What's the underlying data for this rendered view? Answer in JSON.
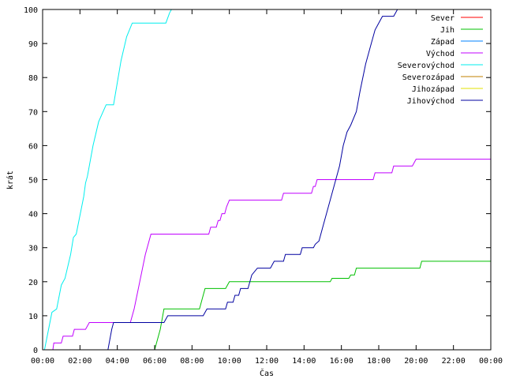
{
  "chart_data": {
    "type": "line",
    "title": "",
    "xlabel": "Čas",
    "ylabel": "krát",
    "xlim": [
      0,
      24
    ],
    "ylim": [
      0,
      100
    ],
    "x_ticks": [
      {
        "v": 0,
        "label": "00:00"
      },
      {
        "v": 2,
        "label": "02:00"
      },
      {
        "v": 4,
        "label": "04:00"
      },
      {
        "v": 6,
        "label": "06:00"
      },
      {
        "v": 8,
        "label": "08:00"
      },
      {
        "v": 10,
        "label": "10:00"
      },
      {
        "v": 12,
        "label": "12:00"
      },
      {
        "v": 14,
        "label": "14:00"
      },
      {
        "v": 16,
        "label": "16:00"
      },
      {
        "v": 18,
        "label": "18:00"
      },
      {
        "v": 20,
        "label": "20:00"
      },
      {
        "v": 22,
        "label": "22:00"
      },
      {
        "v": 24,
        "label": "00:00"
      }
    ],
    "y_ticks": [
      {
        "v": 0,
        "label": "0"
      },
      {
        "v": 10,
        "label": "10"
      },
      {
        "v": 20,
        "label": "20"
      },
      {
        "v": 30,
        "label": "30"
      },
      {
        "v": 40,
        "label": "40"
      },
      {
        "v": 50,
        "label": "50"
      },
      {
        "v": 60,
        "label": "60"
      },
      {
        "v": 70,
        "label": "70"
      },
      {
        "v": 80,
        "label": "80"
      },
      {
        "v": 90,
        "label": "90"
      },
      {
        "v": 100,
        "label": "100"
      }
    ],
    "grid": false,
    "legend_position": "top-right",
    "series": [
      {
        "name": "Sever",
        "color": "#ff0000",
        "points": []
      },
      {
        "name": "Jih",
        "color": "#00c000",
        "points": [
          [
            6.0,
            0
          ],
          [
            6.3,
            6
          ],
          [
            6.5,
            12
          ],
          [
            8.4,
            12
          ],
          [
            8.6,
            16
          ],
          [
            8.7,
            18
          ],
          [
            9.8,
            18
          ],
          [
            10.0,
            20
          ],
          [
            15.4,
            20
          ],
          [
            15.5,
            21
          ],
          [
            16.4,
            21
          ],
          [
            16.5,
            22
          ],
          [
            16.7,
            22
          ],
          [
            16.8,
            24
          ],
          [
            20.2,
            24
          ],
          [
            20.3,
            26
          ],
          [
            24.0,
            26
          ]
        ]
      },
      {
        "name": "Západ",
        "color": "#0080ff",
        "points": []
      },
      {
        "name": "Východ",
        "color": "#c000ff",
        "points": [
          [
            0.0,
            0
          ],
          [
            0.55,
            0
          ],
          [
            0.6,
            2
          ],
          [
            1.0,
            2
          ],
          [
            1.1,
            4
          ],
          [
            1.6,
            4
          ],
          [
            1.7,
            6
          ],
          [
            2.3,
            6
          ],
          [
            2.5,
            8
          ],
          [
            4.7,
            8
          ],
          [
            4.9,
            12
          ],
          [
            5.2,
            20
          ],
          [
            5.5,
            28
          ],
          [
            5.8,
            34
          ],
          [
            8.9,
            34
          ],
          [
            9.0,
            36
          ],
          [
            9.3,
            36
          ],
          [
            9.4,
            38
          ],
          [
            9.5,
            38
          ],
          [
            9.6,
            40
          ],
          [
            9.75,
            40
          ],
          [
            9.85,
            42
          ],
          [
            10.0,
            44
          ],
          [
            12.8,
            44
          ],
          [
            12.9,
            46
          ],
          [
            14.4,
            46
          ],
          [
            14.5,
            48
          ],
          [
            14.6,
            48
          ],
          [
            14.7,
            50
          ],
          [
            17.7,
            50
          ],
          [
            17.8,
            52
          ],
          [
            18.7,
            52
          ],
          [
            18.8,
            54
          ],
          [
            19.8,
            54
          ],
          [
            20.0,
            56
          ],
          [
            24.0,
            56
          ]
        ]
      },
      {
        "name": "Severovýchod",
        "color": "#00eeee",
        "points": [
          [
            0.1,
            0
          ],
          [
            0.5,
            11
          ],
          [
            0.75,
            12
          ],
          [
            1.0,
            19
          ],
          [
            1.2,
            21
          ],
          [
            1.5,
            28
          ],
          [
            1.65,
            33
          ],
          [
            1.8,
            34
          ],
          [
            2.2,
            45
          ],
          [
            2.3,
            49
          ],
          [
            2.4,
            51
          ],
          [
            2.7,
            60
          ],
          [
            3.0,
            67
          ],
          [
            3.4,
            72
          ],
          [
            3.8,
            72
          ],
          [
            4.2,
            85
          ],
          [
            4.5,
            92
          ],
          [
            4.8,
            96
          ],
          [
            6.6,
            96
          ],
          [
            6.8,
            99
          ],
          [
            6.9,
            100
          ]
        ]
      },
      {
        "name": "Severozápad",
        "color": "#c08000",
        "points": []
      },
      {
        "name": "Jihozápad",
        "color": "#e0e000",
        "points": []
      },
      {
        "name": "Jihovýchod",
        "color": "#0000a0",
        "points": [
          [
            3.5,
            0
          ],
          [
            3.7,
            6
          ],
          [
            3.8,
            8
          ],
          [
            6.5,
            8
          ],
          [
            6.7,
            10
          ],
          [
            8.6,
            10
          ],
          [
            8.8,
            12
          ],
          [
            9.8,
            12
          ],
          [
            9.9,
            14
          ],
          [
            10.2,
            14
          ],
          [
            10.3,
            16
          ],
          [
            10.5,
            16
          ],
          [
            10.6,
            18
          ],
          [
            11.0,
            18
          ],
          [
            11.1,
            20
          ],
          [
            11.2,
            22
          ],
          [
            11.5,
            24
          ],
          [
            12.2,
            24
          ],
          [
            12.4,
            26
          ],
          [
            12.9,
            26
          ],
          [
            13.0,
            28
          ],
          [
            13.8,
            28
          ],
          [
            13.9,
            30
          ],
          [
            14.5,
            30
          ],
          [
            14.6,
            31
          ],
          [
            14.8,
            32
          ],
          [
            15.0,
            36
          ],
          [
            15.3,
            42
          ],
          [
            15.6,
            48
          ],
          [
            15.9,
            54
          ],
          [
            16.1,
            60
          ],
          [
            16.3,
            64
          ],
          [
            16.5,
            66
          ],
          [
            16.8,
            70
          ],
          [
            17.0,
            76
          ],
          [
            17.3,
            84
          ],
          [
            17.6,
            90
          ],
          [
            17.8,
            94
          ],
          [
            18.0,
            96
          ],
          [
            18.2,
            98
          ],
          [
            18.8,
            98
          ],
          [
            19.0,
            100
          ]
        ]
      }
    ]
  }
}
